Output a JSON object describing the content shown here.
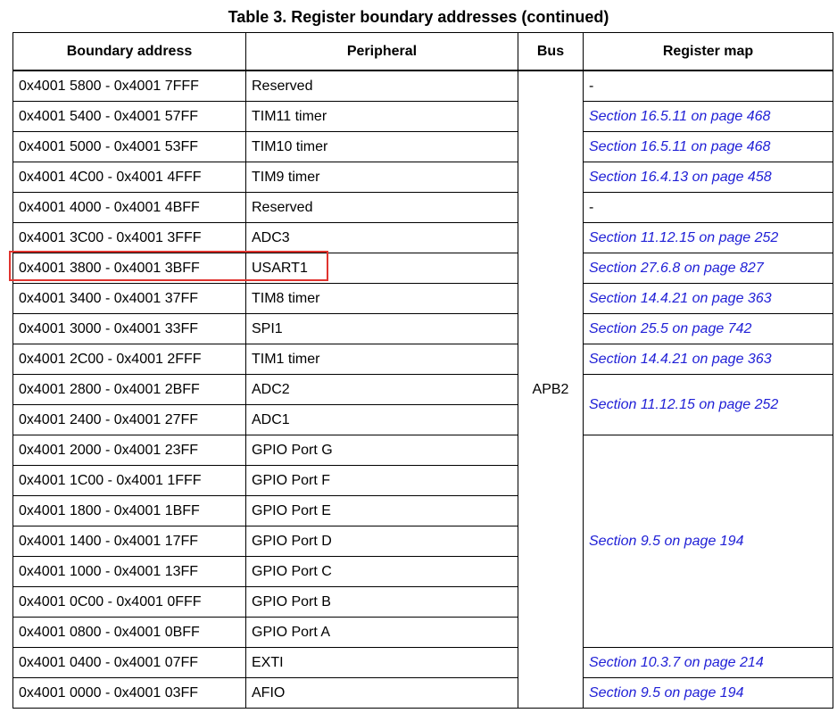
{
  "title": "Table 3. Register boundary addresses (continued)",
  "headers": [
    "Boundary address",
    "Peripheral",
    "Bus",
    "Register map"
  ],
  "bus": "APB2",
  "rows": [
    {
      "address": "0x4001 5800 - 0x4001 7FFF",
      "peripheral": "Reserved",
      "register_map": "-"
    },
    {
      "address": "0x4001 5400 - 0x4001 57FF",
      "peripheral": "TIM11 timer",
      "register_map": "Section 16.5.11 on page 468"
    },
    {
      "address": "0x4001 5000 - 0x4001 53FF",
      "peripheral": "TIM10 timer",
      "register_map": "Section 16.5.11 on page 468"
    },
    {
      "address": "0x4001 4C00 - 0x4001 4FFF",
      "peripheral": "TIM9 timer",
      "register_map": "Section 16.4.13 on page 458"
    },
    {
      "address": "0x4001 4000 - 0x4001 4BFF",
      "peripheral": "Reserved",
      "register_map": "-"
    },
    {
      "address": "0x4001 3C00 - 0x4001 3FFF",
      "peripheral": "ADC3",
      "register_map": "Section 11.12.15 on page 252"
    },
    {
      "address": "0x4001 3800 - 0x4001 3BFF",
      "peripheral": "USART1",
      "register_map": "Section 27.6.8 on page 827"
    },
    {
      "address": "0x4001 3400 - 0x4001 37FF",
      "peripheral": "TIM8 timer",
      "register_map": "Section 14.4.21 on page 363"
    },
    {
      "address": "0x4001 3000 - 0x4001 33FF",
      "peripheral": "SPI1",
      "register_map": "Section 25.5 on page 742"
    },
    {
      "address": "0x4001 2C00 - 0x4001 2FFF",
      "peripheral": "TIM1 timer",
      "register_map": "Section 14.4.21 on page 363"
    },
    {
      "address": "0x4001 2800 - 0x4001 2BFF",
      "peripheral": "ADC2",
      "register_map": "Section 11.12.15 on page 252"
    },
    {
      "address": "0x4001 2400 - 0x4001 27FF",
      "peripheral": "ADC1",
      "register_map": ""
    },
    {
      "address": "0x4001 2000 - 0x4001 23FF",
      "peripheral": "GPIO Port G",
      "register_map": "Section 9.5 on page 194"
    },
    {
      "address": "0x4001 1C00 - 0x4001 1FFF",
      "peripheral": "GPIO Port F",
      "register_map": ""
    },
    {
      "address": "0x4001 1800 - 0x4001 1BFF",
      "peripheral": "GPIO Port E",
      "register_map": ""
    },
    {
      "address": "0x4001 1400 - 0x4001 17FF",
      "peripheral": "GPIO Port D",
      "register_map": ""
    },
    {
      "address": "0x4001 1000 - 0x4001 13FF",
      "peripheral": "GPIO Port C",
      "register_map": ""
    },
    {
      "address": "0x4001 0C00 - 0x4001 0FFF",
      "peripheral": "GPIO Port B",
      "register_map": ""
    },
    {
      "address": "0x4001 0800 - 0x4001 0BFF",
      "peripheral": "GPIO Port A",
      "register_map": ""
    },
    {
      "address": "0x4001 0400 - 0x4001 07FF",
      "peripheral": "EXTI",
      "register_map": "Section 10.3.7 on page 214"
    },
    {
      "address": "0x4001 0000 - 0x4001 03FF",
      "peripheral": "AFIO",
      "register_map": "Section 9.5 on page 194"
    }
  ],
  "colors": {
    "link": "#1f1fd6",
    "highlight": "#e0342f"
  }
}
